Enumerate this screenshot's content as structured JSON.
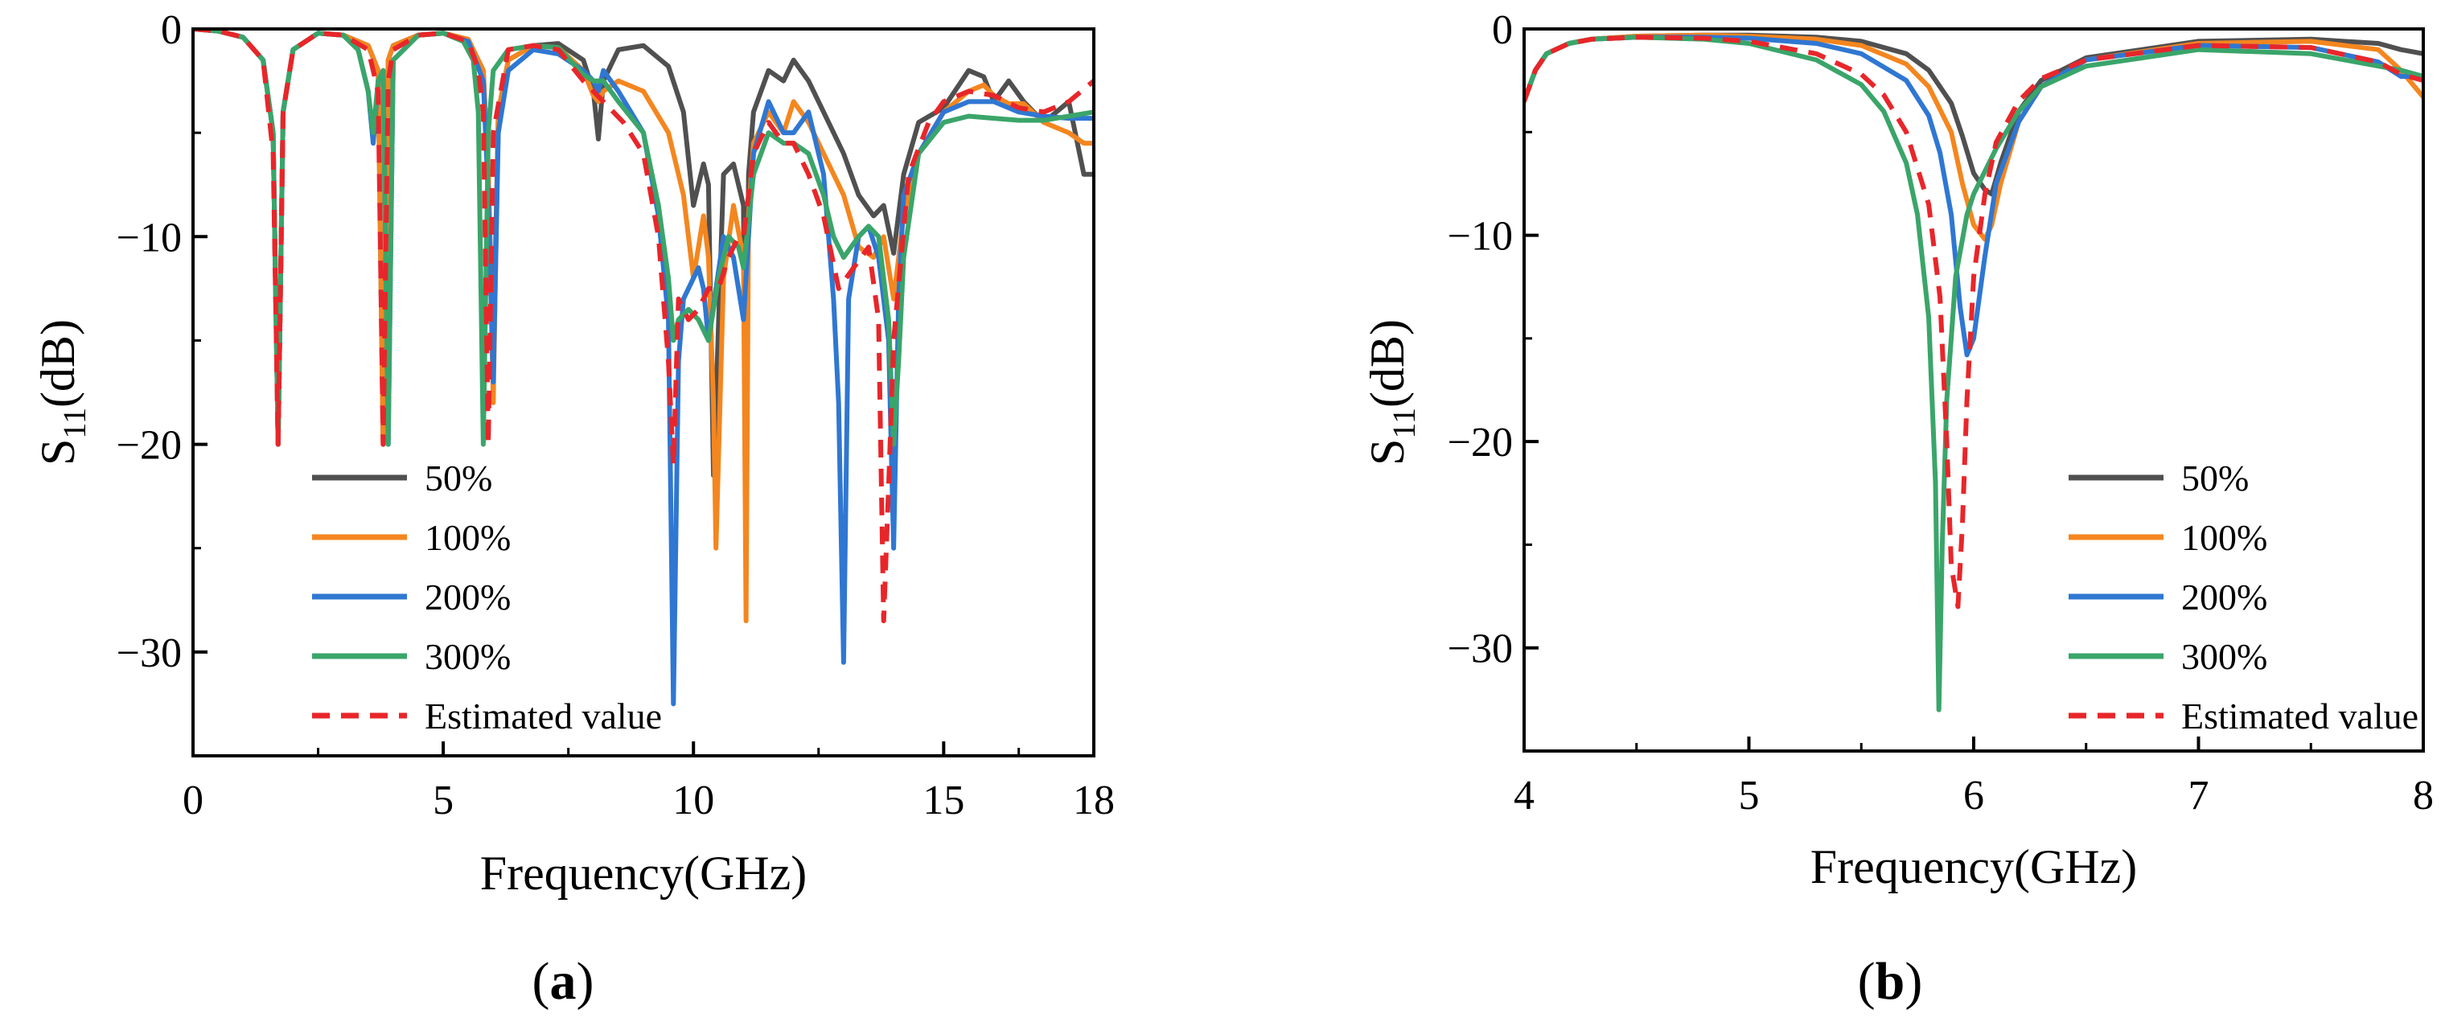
{
  "figure": {
    "panel_a_label": {
      "open": "(",
      "letter": "a",
      "close": ")"
    },
    "panel_b_label": {
      "open": "(",
      "letter": "b",
      "close": ")"
    }
  },
  "colors": {
    "50%": "#505050",
    "100%": "#f4861f",
    "200%": "#2f77d2",
    "300%": "#3aa56a",
    "Estimated value": "#e8262a"
  },
  "chart_data": [
    {
      "id": "a",
      "type": "line",
      "title": "",
      "xlabel": "Frequency(GHz)",
      "ylabel_main": "S",
      "ylabel_sub": "11",
      "ylabel_unit": "(dB)",
      "xlim": [
        0,
        18
      ],
      "ylim": [
        -35,
        0
      ],
      "xticks": [
        0,
        5,
        10,
        15,
        18
      ],
      "yticks": [
        0,
        -10,
        -20,
        -30
      ],
      "xtick_labels": [
        "0",
        "5",
        "10",
        "15",
        "18"
      ],
      "ytick_labels": [
        "0",
        "−10",
        "−20",
        "−30"
      ],
      "grid": false,
      "legend_position": "bottom-left",
      "legend": [
        "50%",
        "100%",
        "200%",
        "300%",
        "Estimated value"
      ],
      "series": [
        {
          "name": "50%",
          "x": [
            0,
            0.5,
            1.0,
            1.4,
            1.6,
            1.7,
            1.8,
            2.0,
            2.5,
            3.0,
            3.5,
            3.7,
            3.8,
            3.9,
            4.0,
            4.5,
            5.0,
            5.5,
            5.8,
            5.9,
            6.0,
            6.1,
            6.3,
            6.8,
            7.3,
            7.8,
            8.0,
            8.1,
            8.2,
            8.5,
            9.0,
            9.5,
            9.8,
            10.0,
            10.2,
            10.3,
            10.4,
            10.6,
            10.8,
            11.0,
            11.05,
            11.1,
            11.2,
            11.5,
            11.8,
            12.0,
            12.3,
            12.6,
            13.0,
            13.3,
            13.6,
            13.8,
            14.0,
            14.2,
            14.5,
            15.0,
            15.5,
            15.8,
            16.0,
            16.3,
            16.6,
            17.0,
            17.5,
            17.8,
            18.0
          ],
          "y": [
            0,
            -0.1,
            -0.4,
            -1.5,
            -5,
            -20,
            -4,
            -1,
            -0.2,
            -0.3,
            -0.8,
            -2,
            -20,
            -1.5,
            -0.8,
            -0.3,
            -0.2,
            -0.5,
            -2,
            -7,
            -16,
            -4,
            -1.5,
            -0.8,
            -0.7,
            -1.5,
            -3,
            -5.3,
            -2.5,
            -1,
            -0.8,
            -1.8,
            -4,
            -8.5,
            -6.5,
            -7.5,
            -21.5,
            -7,
            -6.5,
            -8.5,
            -22,
            -7,
            -4,
            -2,
            -2.5,
            -1.5,
            -2.5,
            -4,
            -6,
            -8,
            -9,
            -8.5,
            -10.8,
            -7,
            -4.5,
            -3.8,
            -2,
            -2.3,
            -3.5,
            -2.5,
            -3.5,
            -4.5,
            -3.5,
            -7,
            -7
          ]
        },
        {
          "name": "100%",
          "x": [
            0,
            0.5,
            1.0,
            1.4,
            1.6,
            1.7,
            1.8,
            2.0,
            2.5,
            3.0,
            3.5,
            3.7,
            3.8,
            3.9,
            4.0,
            4.5,
            5.0,
            5.5,
            5.8,
            5.9,
            6.0,
            6.1,
            6.3,
            6.8,
            7.3,
            7.8,
            8.0,
            8.1,
            8.2,
            8.5,
            9.0,
            9.5,
            9.8,
            10.0,
            10.2,
            10.3,
            10.4,
            10.45,
            10.6,
            10.8,
            11.0,
            11.05,
            11.1,
            11.2,
            11.5,
            11.8,
            12.0,
            12.3,
            12.6,
            13.0,
            13.3,
            13.6,
            13.8,
            14.0,
            14.2,
            14.5,
            15.0,
            15.5,
            15.8,
            16.0,
            16.3,
            16.6,
            17.0,
            17.5,
            17.8,
            18.0
          ],
          "y": [
            0,
            -0.1,
            -0.4,
            -1.5,
            -5,
            -20,
            -4,
            -1,
            -0.2,
            -0.3,
            -0.8,
            -2,
            -20,
            -1.5,
            -0.8,
            -0.3,
            -0.2,
            -0.5,
            -2,
            -7,
            -18,
            -4,
            -1.5,
            -0.8,
            -0.9,
            -2,
            -3.2,
            -3.5,
            -3,
            -2.5,
            -3,
            -5,
            -8,
            -12,
            -9,
            -11,
            -18,
            -25,
            -12,
            -8.5,
            -11,
            -28.5,
            -9,
            -5.5,
            -4,
            -5,
            -3.5,
            -4.5,
            -6,
            -8,
            -10.5,
            -11,
            -10,
            -13,
            -9,
            -6,
            -4,
            -3,
            -2.7,
            -3.2,
            -3.6,
            -3.6,
            -4.5,
            -5,
            -5.5,
            -5.5
          ]
        },
        {
          "name": "200%",
          "x": [
            0,
            0.5,
            1.0,
            1.4,
            1.6,
            1.7,
            1.8,
            2.0,
            2.5,
            3.0,
            3.3,
            3.5,
            3.6,
            3.7,
            3.8,
            3.9,
            4.0,
            4.5,
            5.0,
            5.5,
            5.8,
            5.9,
            6.0,
            6.1,
            6.3,
            6.8,
            7.3,
            7.8,
            8.0,
            8.1,
            8.2,
            8.5,
            9.0,
            9.3,
            9.5,
            9.6,
            9.7,
            9.8,
            10.0,
            10.1,
            10.2,
            10.3,
            10.6,
            10.8,
            10.9,
            11.0,
            11.2,
            11.5,
            11.8,
            12.0,
            12.3,
            12.6,
            12.8,
            12.9,
            13.0,
            13.1,
            13.3,
            13.5,
            13.7,
            13.9,
            14.0,
            14.1,
            14.2,
            14.5,
            15.0,
            15.5,
            16.0,
            16.5,
            17.0,
            17.5,
            18.0
          ],
          "y": [
            0,
            -0.1,
            -0.4,
            -1.5,
            -5,
            -20,
            -4,
            -1,
            -0.2,
            -0.3,
            -1,
            -3,
            -5.5,
            -2.5,
            -2,
            -20,
            -1.5,
            -0.3,
            -0.2,
            -0.6,
            -2.5,
            -8,
            -17,
            -5,
            -2,
            -1,
            -1.2,
            -2,
            -2.5,
            -3,
            -2,
            -3,
            -5,
            -9,
            -14,
            -32.5,
            -16,
            -13,
            -12,
            -11.5,
            -12.5,
            -15,
            -10,
            -11,
            -12.5,
            -14,
            -6,
            -3.5,
            -5,
            -5,
            -4,
            -7,
            -13,
            -18,
            -30.5,
            -13,
            -10,
            -9.5,
            -11,
            -15,
            -25,
            -13,
            -8,
            -6,
            -4,
            -3.5,
            -3.5,
            -4,
            -4.2,
            -4.3,
            -4.3
          ]
        },
        {
          "name": "300%",
          "x": [
            0,
            0.5,
            1.0,
            1.4,
            1.6,
            1.7,
            1.8,
            2.0,
            2.5,
            3.0,
            3.3,
            3.5,
            3.6,
            3.7,
            3.8,
            3.9,
            4.0,
            4.5,
            5.0,
            5.4,
            5.6,
            5.7,
            5.8,
            5.9,
            6.0,
            6.3,
            6.8,
            7.3,
            7.8,
            8.0,
            8.1,
            8.2,
            8.5,
            9.0,
            9.3,
            9.5,
            9.6,
            9.7,
            9.9,
            10.1,
            10.3,
            10.5,
            10.7,
            10.9,
            11.0,
            11.2,
            11.5,
            11.8,
            12.0,
            12.3,
            12.6,
            12.8,
            13.0,
            13.3,
            13.5,
            13.7,
            13.9,
            14.0,
            14.1,
            14.2,
            14.5,
            15.0,
            15.5,
            16.0,
            16.5,
            17.0,
            17.5,
            18.0
          ],
          "y": [
            0,
            -0.1,
            -0.4,
            -1.5,
            -5,
            -20,
            -4,
            -1,
            -0.2,
            -0.3,
            -1,
            -3,
            -5,
            -2.5,
            -2,
            -20,
            -1.5,
            -0.3,
            -0.2,
            -0.6,
            -1.5,
            -4,
            -20,
            -5,
            -2,
            -1,
            -0.8,
            -0.9,
            -2.2,
            -2.5,
            -2.5,
            -2.5,
            -3.5,
            -5,
            -8.5,
            -12,
            -15,
            -14,
            -13.5,
            -14,
            -15,
            -12,
            -10,
            -10.5,
            -11.5,
            -7,
            -5,
            -5.5,
            -5.5,
            -6,
            -8,
            -10,
            -11,
            -10,
            -9.5,
            -10,
            -14,
            -20,
            -16,
            -11,
            -6,
            -4.5,
            -4.2,
            -4.3,
            -4.4,
            -4.4,
            -4.2,
            -4
          ]
        },
        {
          "name": "Estimated value",
          "x": [
            0,
            0.5,
            1.0,
            1.4,
            1.6,
            1.7,
            1.8,
            2.0,
            2.5,
            3.0,
            3.5,
            3.7,
            3.8,
            3.9,
            4.0,
            4.5,
            5.0,
            5.5,
            5.7,
            5.8,
            5.9,
            6.0,
            6.3,
            6.8,
            7.3,
            7.8,
            8.2,
            8.6,
            9.0,
            9.3,
            9.5,
            9.6,
            9.7,
            9.9,
            10.1,
            10.3,
            10.5,
            10.7,
            10.9,
            11.0,
            11.2,
            11.5,
            11.8,
            12.0,
            12.3,
            12.6,
            12.9,
            13.2,
            13.5,
            13.7,
            13.8,
            13.9,
            14.0,
            14.3,
            14.7,
            15.0,
            15.5,
            16.0,
            16.5,
            17.0,
            17.5,
            18.0
          ],
          "y": [
            0,
            -0.1,
            -0.4,
            -1.5,
            -6,
            -20,
            -4,
            -1,
            -0.2,
            -0.3,
            -1,
            -3,
            -20,
            -2.5,
            -1,
            -0.3,
            -0.2,
            -0.6,
            -2,
            -4,
            -20,
            -5,
            -1,
            -0.8,
            -1,
            -2.5,
            -3.5,
            -4.5,
            -6,
            -10,
            -16,
            -21,
            -13,
            -14,
            -13.5,
            -12.5,
            -12.5,
            -11,
            -10,
            -10,
            -6,
            -4.5,
            -5.5,
            -5.5,
            -7,
            -9,
            -12.5,
            -11.5,
            -10.5,
            -14,
            -28.5,
            -22,
            -15,
            -7,
            -4.5,
            -3.5,
            -3,
            -3.2,
            -3.8,
            -4,
            -3.5,
            -2.5
          ]
        }
      ]
    },
    {
      "id": "b",
      "type": "line",
      "title": "",
      "xlabel": "Frequency(GHz)",
      "ylabel_main": "S",
      "ylabel_sub": "11",
      "ylabel_unit": "(dB)",
      "xlim": [
        4,
        8
      ],
      "ylim": [
        -35,
        0
      ],
      "xticks": [
        4,
        5,
        6,
        7,
        8
      ],
      "yticks": [
        0,
        -10,
        -20,
        -30
      ],
      "xtick_labels": [
        "4",
        "5",
        "6",
        "7",
        "8"
      ],
      "ytick_labels": [
        "0",
        "−10",
        "−20",
        "−30"
      ],
      "grid": false,
      "legend_position": "bottom-right",
      "legend": [
        "50%",
        "100%",
        "200%",
        "300%",
        "Estimated value"
      ],
      "series": [
        {
          "name": "50%",
          "x": [
            4.0,
            4.05,
            4.1,
            4.2,
            4.3,
            4.5,
            4.8,
            5.0,
            5.3,
            5.5,
            5.7,
            5.8,
            5.9,
            5.95,
            6.0,
            6.05,
            6.08,
            6.12,
            6.2,
            6.3,
            6.5,
            7.0,
            7.5,
            7.8,
            7.9,
            8.0
          ],
          "y": [
            -3.5,
            -2,
            -1.2,
            -0.7,
            -0.5,
            -0.35,
            -0.3,
            -0.3,
            -0.4,
            -0.6,
            -1.2,
            -2,
            -3.6,
            -5.2,
            -7,
            -7.8,
            -8,
            -6.5,
            -4,
            -2.5,
            -1.4,
            -0.6,
            -0.5,
            -0.7,
            -1,
            -1.2
          ]
        },
        {
          "name": "100%",
          "x": [
            4.0,
            4.05,
            4.1,
            4.2,
            4.3,
            4.5,
            4.8,
            5.0,
            5.3,
            5.5,
            5.7,
            5.8,
            5.9,
            5.95,
            6.0,
            6.05,
            6.08,
            6.12,
            6.2,
            6.3,
            6.5,
            7.0,
            7.5,
            7.8,
            7.9,
            8.0
          ],
          "y": [
            -3.5,
            -2,
            -1.2,
            -0.7,
            -0.5,
            -0.35,
            -0.3,
            -0.35,
            -0.5,
            -0.8,
            -1.7,
            -2.8,
            -5,
            -7.5,
            -9.5,
            -10.2,
            -9.5,
            -7.5,
            -4.5,
            -2.8,
            -1.5,
            -0.7,
            -0.6,
            -1,
            -2,
            -3.3
          ]
        },
        {
          "name": "200%",
          "x": [
            4.0,
            4.05,
            4.1,
            4.2,
            4.3,
            4.5,
            4.8,
            5.0,
            5.3,
            5.5,
            5.7,
            5.8,
            5.85,
            5.9,
            5.94,
            5.97,
            6.0,
            6.05,
            6.1,
            6.2,
            6.3,
            6.5,
            7.0,
            7.5,
            7.8,
            7.9,
            8.0
          ],
          "y": [
            -3.5,
            -2,
            -1.2,
            -0.7,
            -0.5,
            -0.4,
            -0.4,
            -0.45,
            -0.7,
            -1.2,
            -2.5,
            -4.2,
            -6,
            -9,
            -13.5,
            -15.8,
            -15,
            -11,
            -7.5,
            -4.5,
            -2.8,
            -1.5,
            -0.8,
            -0.9,
            -1.6,
            -2.3,
            -2.3
          ]
        },
        {
          "name": "300%",
          "x": [
            4.0,
            4.05,
            4.1,
            4.2,
            4.3,
            4.5,
            4.8,
            5.0,
            5.3,
            5.5,
            5.6,
            5.7,
            5.75,
            5.8,
            5.83,
            5.845,
            5.86,
            5.88,
            5.92,
            5.97,
            6.0,
            6.1,
            6.2,
            6.3,
            6.5,
            7.0,
            7.5,
            7.8,
            7.9,
            8.0
          ],
          "y": [
            -3.5,
            -2,
            -1.2,
            -0.7,
            -0.5,
            -0.4,
            -0.5,
            -0.7,
            -1.5,
            -2.7,
            -4,
            -6.5,
            -9,
            -14,
            -22,
            -33,
            -25,
            -18,
            -12,
            -9,
            -8,
            -5.8,
            -4,
            -2.8,
            -1.8,
            -1,
            -1.2,
            -1.8,
            -2,
            -2.3
          ]
        },
        {
          "name": "Estimated value",
          "x": [
            4.0,
            4.05,
            4.1,
            4.2,
            4.3,
            4.5,
            4.8,
            5.0,
            5.3,
            5.5,
            5.6,
            5.7,
            5.8,
            5.85,
            5.88,
            5.9,
            5.93,
            5.95,
            5.97,
            6.0,
            6.05,
            6.1,
            6.2,
            6.3,
            6.5,
            7.0,
            7.5,
            7.8,
            7.9,
            8.0
          ],
          "y": [
            -3.5,
            -2,
            -1.2,
            -0.7,
            -0.5,
            -0.4,
            -0.45,
            -0.6,
            -1.2,
            -2.2,
            -3.2,
            -5,
            -8.5,
            -13,
            -20,
            -26,
            -28,
            -24,
            -18,
            -12,
            -8,
            -5.5,
            -3.5,
            -2.4,
            -1.5,
            -0.8,
            -0.9,
            -1.6,
            -2.2,
            -2.5
          ]
        }
      ]
    }
  ]
}
